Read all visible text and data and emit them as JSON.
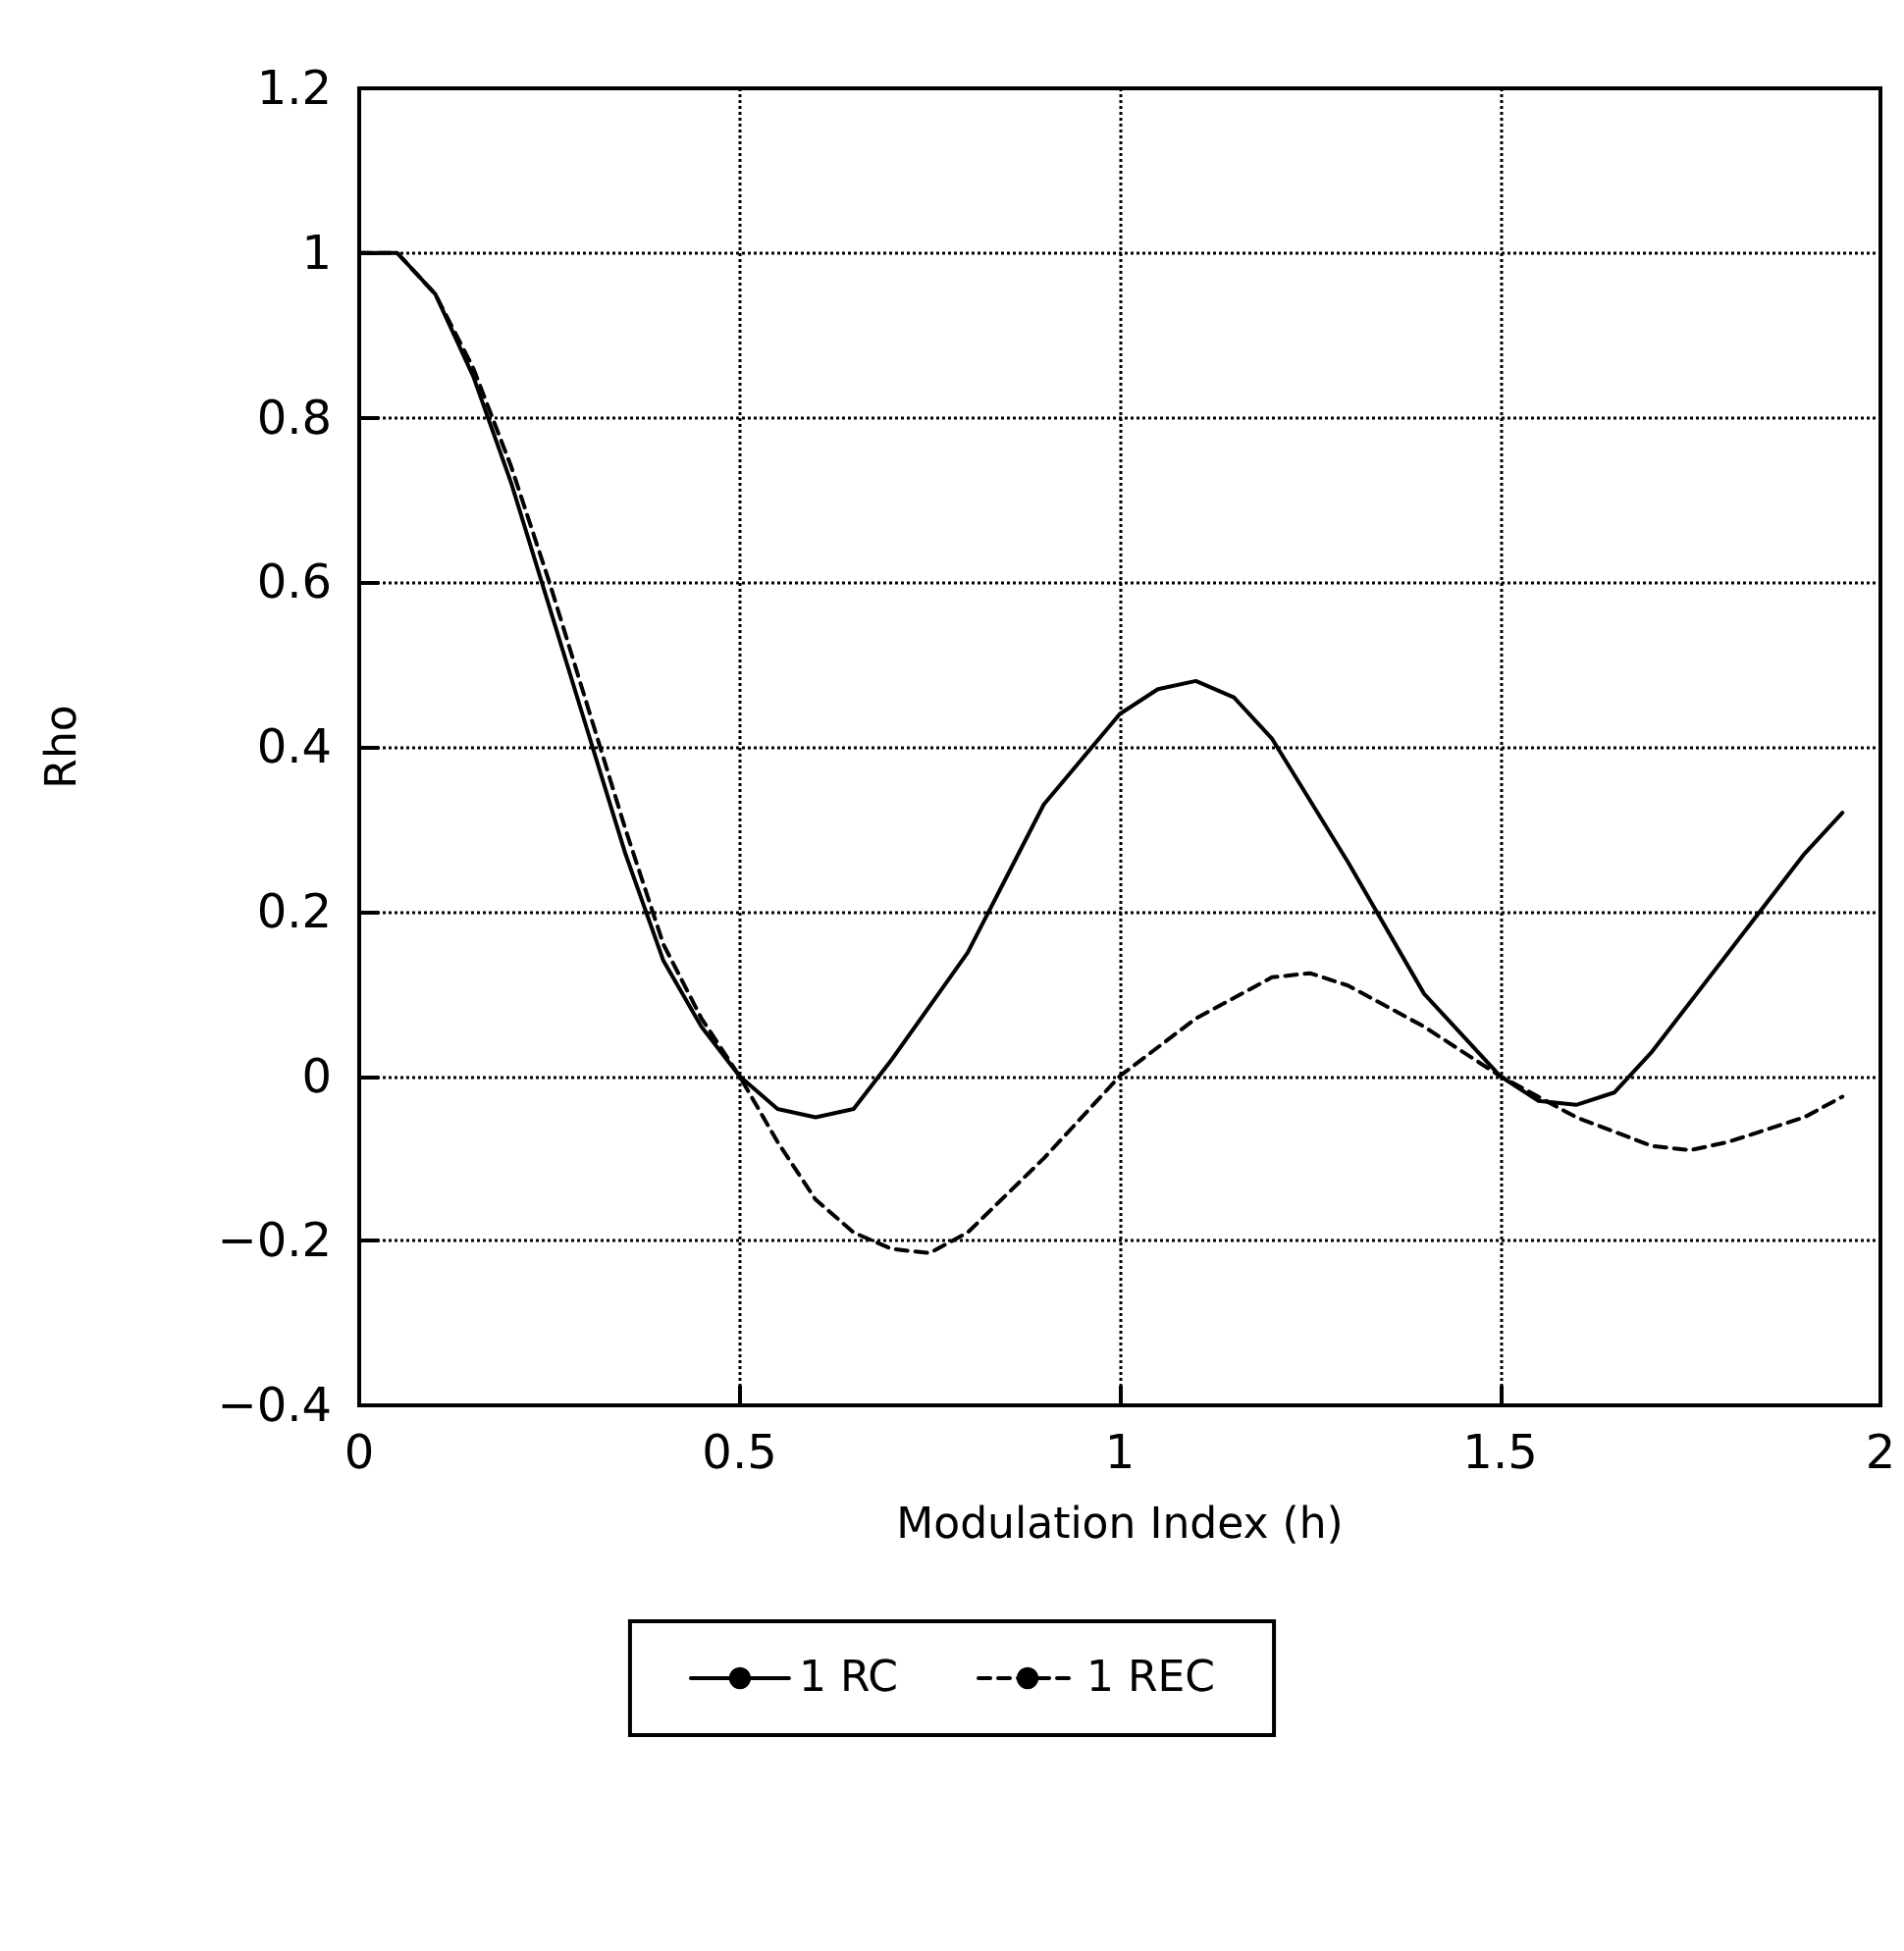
{
  "chart_data": {
    "type": "line",
    "xlabel": "Modulation Index (h)",
    "ylabel": "Rho",
    "xlim": [
      0,
      2
    ],
    "xticks": [
      0,
      0.5,
      1,
      1.5,
      2
    ],
    "ylim": [
      -0.4,
      1.2
    ],
    "yticks": [
      -0.4,
      -0.2,
      0,
      0.2,
      0.4,
      0.6,
      0.8,
      1,
      1.2
    ],
    "grid": true,
    "legend": "bottom",
    "marker": "none",
    "series": [
      {
        "name": "1 RC",
        "color": "#000000",
        "line_style": "solid",
        "x": [
          0,
          0.05,
          0.1,
          0.15,
          0.2,
          0.25,
          0.3,
          0.35,
          0.4,
          0.45,
          0.5,
          0.55,
          0.6,
          0.65,
          0.7,
          0.8,
          0.9,
          1.0,
          1.05,
          1.1,
          1.15,
          1.2,
          1.3,
          1.4,
          1.5,
          1.55,
          1.6,
          1.65,
          1.7,
          1.8,
          1.9,
          1.95
        ],
        "values": [
          1.0,
          1.0,
          0.95,
          0.85,
          0.72,
          0.57,
          0.42,
          0.27,
          0.14,
          0.06,
          0.0,
          -0.04,
          -0.05,
          -0.04,
          0.02,
          0.15,
          0.33,
          0.44,
          0.47,
          0.48,
          0.46,
          0.41,
          0.26,
          0.1,
          0.0,
          -0.03,
          -0.035,
          -0.02,
          0.03,
          0.15,
          0.27,
          0.32
        ]
      },
      {
        "name": "1 REC",
        "color": "#000000",
        "line_style": "dashed",
        "x": [
          0,
          0.05,
          0.1,
          0.15,
          0.2,
          0.25,
          0.3,
          0.35,
          0.4,
          0.45,
          0.5,
          0.55,
          0.6,
          0.65,
          0.7,
          0.75,
          0.8,
          0.9,
          1.0,
          1.1,
          1.2,
          1.25,
          1.3,
          1.4,
          1.5,
          1.6,
          1.7,
          1.75,
          1.8,
          1.9,
          1.95
        ],
        "values": [
          1.0,
          1.0,
          0.95,
          0.86,
          0.74,
          0.6,
          0.45,
          0.3,
          0.16,
          0.07,
          0.0,
          -0.08,
          -0.15,
          -0.19,
          -0.21,
          -0.215,
          -0.19,
          -0.1,
          0.0,
          0.07,
          0.12,
          0.125,
          0.11,
          0.06,
          0.0,
          -0.05,
          -0.085,
          -0.09,
          -0.08,
          -0.05,
          -0.025
        ]
      }
    ]
  }
}
